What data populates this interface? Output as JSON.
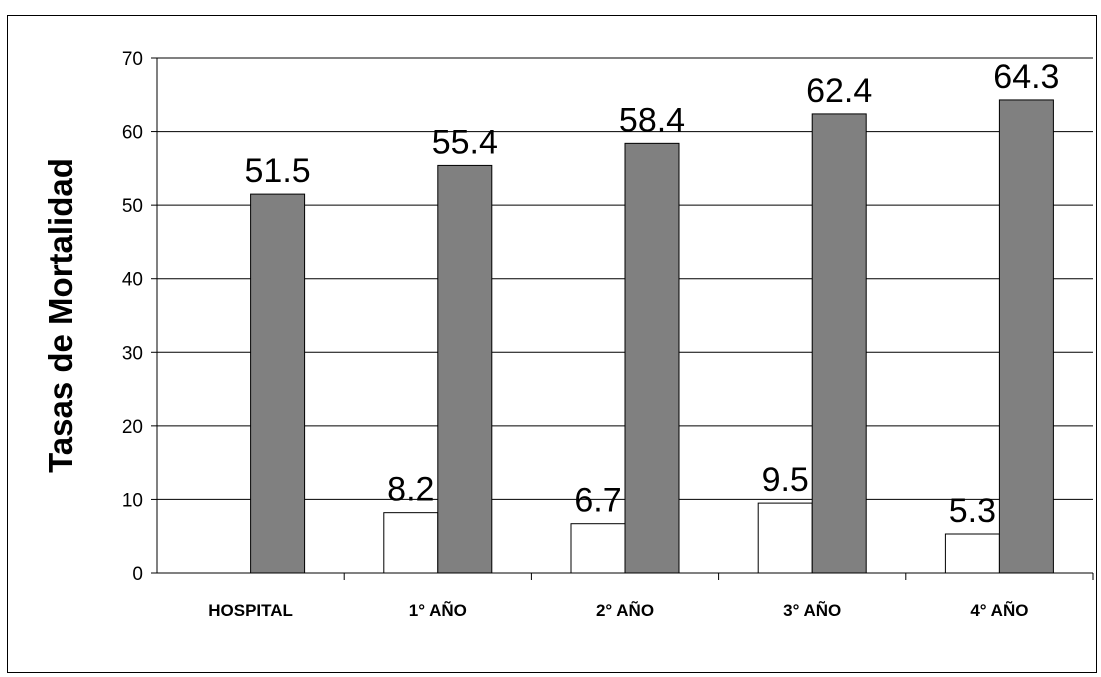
{
  "chart_data": {
    "type": "bar",
    "title": "",
    "xlabel": "",
    "ylabel": "Tasas de Mortalidad",
    "categories": [
      "HOSPITAL",
      "1° AÑO",
      "2° AÑO",
      "3° AÑO",
      "4° AÑO"
    ],
    "series": [
      {
        "values": [
          null,
          8.2,
          6.7,
          9.5,
          5.3
        ],
        "data_labels": [
          "",
          "8.2",
          "6.7",
          "9.5",
          "5.3"
        ],
        "color": "#ffffff"
      },
      {
        "values": [
          51.5,
          55.4,
          58.4,
          62.4,
          64.3
        ],
        "data_labels": [
          "51.5",
          "55.4",
          "58.4",
          "62.4",
          "64.3"
        ],
        "color": "#808080"
      }
    ],
    "ylim": [
      0,
      70
    ],
    "y_ticks": [
      "0",
      "10",
      "20",
      "30",
      "40",
      "50",
      "60",
      "70"
    ],
    "grid": true,
    "legend": "none"
  }
}
